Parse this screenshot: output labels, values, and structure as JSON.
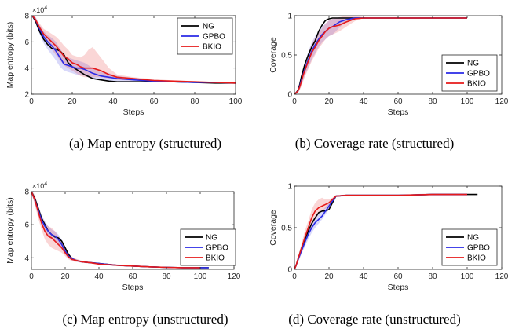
{
  "colors": {
    "NG": "#000000",
    "GPBO": "#2a2ae6",
    "BKIO": "#e61a1a"
  },
  "chart_data": [
    {
      "type": "line",
      "caption": "(a) Map entropy (structured)",
      "xlabel": "Steps",
      "ylabel": "Map entropy (bits)",
      "y_multiplier": "×10",
      "y_exponent": "4",
      "xlim": [
        0,
        100
      ],
      "ylim": [
        2,
        8
      ],
      "xticks": [
        0,
        20,
        40,
        60,
        80,
        100
      ],
      "yticks": [
        2,
        4,
        6,
        8
      ],
      "legend_position": "top-right",
      "series": [
        {
          "name": "NG",
          "color": "#000000",
          "x": [
            0,
            2,
            4,
            6,
            8,
            10,
            12,
            14,
            16,
            18,
            20,
            22,
            24,
            26,
            28,
            30,
            34,
            38,
            42,
            50,
            60,
            70,
            80,
            90,
            100
          ],
          "y": [
            8.1,
            7.6,
            6.8,
            6.2,
            5.8,
            5.5,
            5.45,
            5.3,
            5.0,
            4.4,
            4.1,
            3.9,
            3.7,
            3.5,
            3.35,
            3.2,
            3.1,
            3.0,
            2.95,
            2.95,
            2.95,
            2.95,
            2.9,
            2.85,
            2.85
          ]
        },
        {
          "name": "GPBO",
          "color": "#2a2ae6",
          "x": [
            0,
            2,
            4,
            6,
            8,
            10,
            12,
            14,
            16,
            18,
            20,
            22,
            24,
            26,
            28,
            30,
            34,
            38,
            42,
            50,
            60,
            70,
            80,
            90,
            100
          ],
          "y": [
            8.1,
            7.7,
            7.0,
            6.4,
            6.0,
            5.7,
            5.3,
            4.8,
            4.3,
            4.2,
            4.1,
            4.0,
            4.0,
            3.9,
            3.75,
            3.6,
            3.4,
            3.3,
            3.2,
            3.1,
            3.0,
            2.95,
            2.9,
            2.9,
            2.85
          ],
          "band_low": [
            8.0,
            7.4,
            6.6,
            5.9,
            5.4,
            5.0,
            4.6,
            4.1,
            3.8,
            3.7,
            3.6,
            3.5,
            3.5,
            3.4,
            3.3,
            3.2,
            3.1,
            3.0,
            3.0,
            2.95,
            2.9,
            2.9,
            2.85,
            2.85,
            2.8
          ],
          "band_high": [
            8.2,
            7.9,
            7.3,
            6.8,
            6.5,
            6.3,
            6.0,
            5.5,
            5.0,
            4.8,
            4.7,
            4.6,
            4.5,
            4.4,
            4.2,
            4.0,
            3.7,
            3.6,
            3.4,
            3.25,
            3.1,
            3.0,
            2.95,
            2.95,
            2.9
          ]
        },
        {
          "name": "BKIO",
          "color": "#e61a1a",
          "x": [
            0,
            2,
            4,
            6,
            8,
            10,
            12,
            14,
            16,
            18,
            20,
            22,
            24,
            26,
            28,
            30,
            34,
            38,
            42,
            50,
            60,
            70,
            80,
            90,
            100
          ],
          "y": [
            8.1,
            7.7,
            7.1,
            6.6,
            6.3,
            6.0,
            5.7,
            5.3,
            4.9,
            4.7,
            4.4,
            4.3,
            4.1,
            4.0,
            4.0,
            4.0,
            3.8,
            3.5,
            3.3,
            3.2,
            3.05,
            3.0,
            2.95,
            2.9,
            2.85
          ],
          "band_low": [
            8.0,
            7.5,
            6.8,
            6.2,
            5.8,
            5.4,
            5.0,
            4.6,
            4.2,
            4.0,
            3.8,
            3.6,
            3.4,
            3.3,
            3.3,
            3.3,
            3.3,
            3.2,
            3.1,
            3.05,
            2.95,
            2.9,
            2.9,
            2.85,
            2.8
          ],
          "band_high": [
            8.2,
            7.9,
            7.4,
            7.0,
            6.8,
            6.6,
            6.4,
            6.1,
            5.7,
            5.4,
            5.0,
            4.9,
            4.8,
            5.0,
            5.4,
            5.6,
            4.8,
            4.0,
            3.5,
            3.3,
            3.15,
            3.05,
            3.0,
            2.95,
            2.9
          ]
        }
      ]
    },
    {
      "type": "line",
      "caption": "(b) Coverage rate (structured)",
      "xlabel": "Steps",
      "ylabel": "Coverage",
      "xlim": [
        0,
        120
      ],
      "ylim": [
        0,
        1
      ],
      "xticks": [
        0,
        20,
        40,
        60,
        80,
        100,
        120
      ],
      "yticks": [
        0,
        0.5,
        1
      ],
      "legend_position": "bottom-right",
      "series": [
        {
          "name": "NG",
          "color": "#000000",
          "x": [
            0,
            1,
            2,
            3,
            4,
            5,
            6,
            8,
            10,
            12,
            14,
            16,
            18,
            20,
            22,
            24,
            26,
            30,
            35,
            40,
            50,
            60,
            80,
            100
          ],
          "y": [
            0,
            0.02,
            0.05,
            0.12,
            0.22,
            0.3,
            0.38,
            0.5,
            0.6,
            0.68,
            0.8,
            0.88,
            0.94,
            0.96,
            0.97,
            0.97,
            0.97,
            0.97,
            0.97,
            0.97,
            0.97,
            0.97,
            0.97,
            0.97
          ]
        },
        {
          "name": "GPBO",
          "color": "#2a2ae6",
          "x": [
            0,
            1,
            2,
            3,
            4,
            5,
            6,
            8,
            10,
            12,
            14,
            16,
            18,
            20,
            22,
            24,
            26,
            30,
            35,
            40,
            50,
            60,
            80,
            100
          ],
          "y": [
            0,
            0.02,
            0.04,
            0.1,
            0.18,
            0.25,
            0.32,
            0.44,
            0.55,
            0.63,
            0.7,
            0.76,
            0.8,
            0.84,
            0.86,
            0.89,
            0.92,
            0.95,
            0.97,
            0.97,
            0.97,
            0.97,
            0.97,
            0.97
          ],
          "band_low": [
            0,
            0.01,
            0.02,
            0.06,
            0.12,
            0.18,
            0.24,
            0.34,
            0.44,
            0.52,
            0.6,
            0.66,
            0.7,
            0.74,
            0.76,
            0.8,
            0.85,
            0.92,
            0.96,
            0.97,
            0.97,
            0.97,
            0.97,
            0.97
          ],
          "band_high": [
            0,
            0.03,
            0.06,
            0.14,
            0.24,
            0.32,
            0.4,
            0.54,
            0.66,
            0.74,
            0.8,
            0.86,
            0.9,
            0.94,
            0.96,
            0.97,
            0.98,
            0.98,
            0.98,
            0.97,
            0.97,
            0.97,
            0.97,
            0.97
          ]
        },
        {
          "name": "BKIO",
          "color": "#e61a1a",
          "x": [
            0,
            1,
            2,
            3,
            4,
            5,
            6,
            8,
            10,
            12,
            14,
            16,
            18,
            20,
            22,
            24,
            26,
            30,
            35,
            40,
            50,
            60,
            80,
            100
          ],
          "y": [
            0,
            0.02,
            0.04,
            0.09,
            0.16,
            0.24,
            0.3,
            0.42,
            0.53,
            0.6,
            0.68,
            0.74,
            0.8,
            0.84,
            0.86,
            0.87,
            0.88,
            0.92,
            0.96,
            0.97,
            0.97,
            0.97,
            0.97,
            0.97
          ],
          "band_low": [
            0,
            0.01,
            0.02,
            0.05,
            0.1,
            0.16,
            0.22,
            0.32,
            0.42,
            0.5,
            0.58,
            0.64,
            0.7,
            0.74,
            0.76,
            0.78,
            0.8,
            0.86,
            0.93,
            0.97,
            0.97,
            0.97,
            0.97,
            0.97
          ],
          "band_high": [
            0,
            0.03,
            0.06,
            0.13,
            0.22,
            0.32,
            0.4,
            0.52,
            0.64,
            0.72,
            0.78,
            0.84,
            0.9,
            0.94,
            0.96,
            0.97,
            0.98,
            1.0,
            1.0,
            0.98,
            0.97,
            0.97,
            0.97,
            0.97
          ]
        }
      ]
    },
    {
      "type": "line",
      "caption": "(c) Map entropy (unstructured)",
      "xlabel": "Steps",
      "ylabel": "Map entropy (bits)",
      "y_multiplier": "×10",
      "y_exponent": "4",
      "xlim": [
        0,
        120
      ],
      "ylim": [
        3.3,
        8
      ],
      "xticks": [
        0,
        20,
        40,
        60,
        80,
        100,
        120
      ],
      "yticks": [
        4,
        6,
        8
      ],
      "legend_position": "top-right",
      "series": [
        {
          "name": "NG",
          "color": "#000000",
          "x": [
            0,
            2,
            4,
            6,
            8,
            10,
            12,
            14,
            16,
            18,
            20,
            22,
            24,
            26,
            30,
            35,
            40,
            50,
            60,
            70,
            80,
            90,
            100,
            105
          ],
          "y": [
            8.0,
            7.6,
            7.0,
            6.4,
            6.0,
            5.6,
            5.4,
            5.25,
            5.2,
            5.0,
            4.6,
            4.2,
            3.95,
            3.85,
            3.75,
            3.7,
            3.65,
            3.55,
            3.5,
            3.45,
            3.42,
            3.4,
            3.4,
            3.4
          ]
        },
        {
          "name": "GPBO",
          "color": "#2a2ae6",
          "x": [
            0,
            2,
            4,
            6,
            8,
            10,
            12,
            14,
            16,
            18,
            20,
            22,
            24,
            26,
            30,
            35,
            40,
            50,
            60,
            70,
            80,
            90,
            100,
            105
          ],
          "y": [
            8.0,
            7.5,
            6.9,
            6.3,
            5.9,
            5.6,
            5.4,
            5.3,
            5.1,
            4.8,
            4.4,
            4.1,
            3.95,
            3.85,
            3.75,
            3.7,
            3.65,
            3.55,
            3.5,
            3.45,
            3.42,
            3.4,
            3.4,
            3.4
          ],
          "band_low": [
            7.9,
            7.3,
            6.6,
            6.0,
            5.6,
            5.3,
            5.1,
            5.0,
            4.8,
            4.5,
            4.2,
            3.95,
            3.85,
            3.78,
            3.7,
            3.65,
            3.6,
            3.5,
            3.45,
            3.42,
            3.4,
            3.38,
            3.38,
            3.38
          ],
          "band_high": [
            8.1,
            7.7,
            7.2,
            6.6,
            6.2,
            5.9,
            5.7,
            5.6,
            5.4,
            5.1,
            4.6,
            4.25,
            4.05,
            3.92,
            3.8,
            3.75,
            3.7,
            3.6,
            3.55,
            3.48,
            3.45,
            3.42,
            3.42,
            3.42
          ]
        },
        {
          "name": "BKIO",
          "color": "#e61a1a",
          "x": [
            0,
            2,
            4,
            6,
            8,
            10,
            12,
            14,
            16,
            18,
            20,
            22,
            24,
            26,
            30,
            35,
            40,
            50,
            60,
            70,
            80,
            90,
            100
          ],
          "y": [
            8.0,
            7.5,
            6.8,
            6.1,
            5.6,
            5.3,
            5.2,
            5.0,
            4.8,
            4.6,
            4.3,
            4.05,
            3.9,
            3.85,
            3.75,
            3.7,
            3.62,
            3.55,
            3.5,
            3.45,
            3.42,
            3.4,
            3.4
          ],
          "band_low": [
            7.9,
            7.2,
            6.4,
            5.7,
            5.1,
            4.8,
            4.6,
            4.5,
            4.4,
            4.3,
            4.1,
            3.9,
            3.8,
            3.75,
            3.7,
            3.65,
            3.58,
            3.5,
            3.45,
            3.42,
            3.4,
            3.38,
            3.38
          ],
          "band_high": [
            8.1,
            7.8,
            7.2,
            6.5,
            6.1,
            5.9,
            5.8,
            5.6,
            5.3,
            5.0,
            4.6,
            4.25,
            4.05,
            3.95,
            3.82,
            3.75,
            3.68,
            3.6,
            3.55,
            3.48,
            3.45,
            3.42,
            3.42
          ]
        }
      ]
    },
    {
      "type": "line",
      "caption": "(d) Coverage rate (unstructured)",
      "xlabel": "Steps",
      "ylabel": "Coverage",
      "xlim": [
        0,
        120
      ],
      "ylim": [
        0,
        1
      ],
      "xticks": [
        0,
        20,
        40,
        60,
        80,
        100,
        120
      ],
      "yticks": [
        0,
        0.5,
        1
      ],
      "legend_position": "bottom-right",
      "series": [
        {
          "name": "NG",
          "color": "#000000",
          "x": [
            0,
            1,
            2,
            4,
            6,
            8,
            10,
            12,
            14,
            16,
            18,
            20,
            22,
            24,
            30,
            40,
            60,
            80,
            100,
            106
          ],
          "y": [
            0,
            0.05,
            0.12,
            0.25,
            0.36,
            0.46,
            0.55,
            0.62,
            0.68,
            0.7,
            0.7,
            0.72,
            0.8,
            0.88,
            0.89,
            0.89,
            0.89,
            0.9,
            0.9,
            0.9
          ]
        },
        {
          "name": "GPBO",
          "color": "#2a2ae6",
          "x": [
            0,
            1,
            2,
            4,
            6,
            8,
            10,
            12,
            14,
            16,
            18,
            20,
            22,
            24,
            30,
            40,
            60,
            80,
            100
          ],
          "y": [
            0,
            0.05,
            0.11,
            0.22,
            0.32,
            0.42,
            0.5,
            0.56,
            0.6,
            0.64,
            0.7,
            0.76,
            0.82,
            0.88,
            0.89,
            0.89,
            0.89,
            0.9,
            0.9
          ],
          "band_low": [
            0,
            0.03,
            0.08,
            0.18,
            0.27,
            0.36,
            0.44,
            0.5,
            0.55,
            0.6,
            0.66,
            0.72,
            0.8,
            0.87,
            0.88,
            0.88,
            0.88,
            0.89,
            0.89
          ],
          "band_high": [
            0,
            0.07,
            0.14,
            0.26,
            0.37,
            0.48,
            0.56,
            0.62,
            0.66,
            0.7,
            0.75,
            0.8,
            0.85,
            0.89,
            0.9,
            0.9,
            0.9,
            0.91,
            0.91
          ]
        },
        {
          "name": "BKIO",
          "color": "#e61a1a",
          "x": [
            0,
            1,
            2,
            4,
            6,
            8,
            10,
            12,
            14,
            16,
            18,
            20,
            22,
            24,
            30,
            40,
            60,
            80,
            100
          ],
          "y": [
            0,
            0.05,
            0.12,
            0.25,
            0.38,
            0.5,
            0.62,
            0.7,
            0.74,
            0.76,
            0.78,
            0.8,
            0.84,
            0.88,
            0.89,
            0.89,
            0.89,
            0.9,
            0.9
          ],
          "band_low": [
            0,
            0.03,
            0.08,
            0.19,
            0.3,
            0.42,
            0.52,
            0.6,
            0.66,
            0.7,
            0.73,
            0.76,
            0.82,
            0.87,
            0.88,
            0.88,
            0.88,
            0.89,
            0.89
          ],
          "band_high": [
            0,
            0.07,
            0.15,
            0.3,
            0.46,
            0.58,
            0.72,
            0.8,
            0.84,
            0.86,
            0.84,
            0.84,
            0.86,
            0.89,
            0.9,
            0.9,
            0.9,
            0.91,
            0.91
          ]
        }
      ]
    }
  ]
}
